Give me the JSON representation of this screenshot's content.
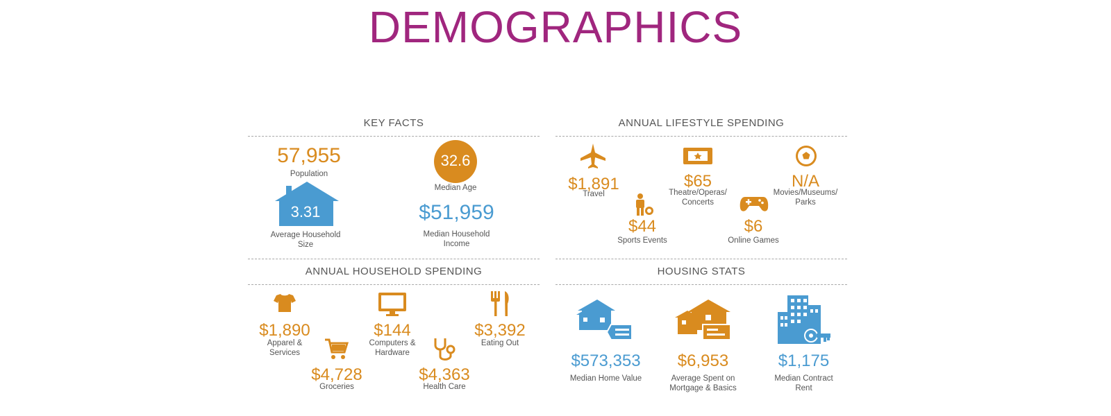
{
  "title": "DEMOGRAPHICS",
  "colors": {
    "title": "#a0267e",
    "orange": "#d98b1f",
    "blue": "#4a9bd1",
    "label": "#555555"
  },
  "key_facts": {
    "heading": "KEY FACTS",
    "population": {
      "value": "57,955",
      "label": "Population"
    },
    "median_age": {
      "value": "32.6",
      "label": "Median Age"
    },
    "household_size": {
      "value": "3.31",
      "label": "Average Household Size"
    },
    "household_income": {
      "value": "$51,959",
      "label": "Median Household Income"
    }
  },
  "lifestyle": {
    "heading": "ANNUAL LIFESTYLE SPENDING",
    "travel": {
      "value": "$1,891",
      "label": "Travel",
      "icon": "airplane-icon"
    },
    "theatre": {
      "value": "$65",
      "label": "Theatre/Operas/ Concerts",
      "icon": "ticket-icon"
    },
    "movies": {
      "value": "N/A",
      "label": "Movies/Museums/ Parks",
      "icon": "soccer-ball-icon"
    },
    "sports": {
      "value": "$44",
      "label": "Sports Events",
      "icon": "player-icon"
    },
    "games": {
      "value": "$6",
      "label": "Online Games",
      "icon": "gamepad-icon"
    }
  },
  "household_spending": {
    "heading": "ANNUAL HOUSEHOLD SPENDING",
    "apparel": {
      "value": "$1,890",
      "label": "Apparel & Services",
      "icon": "shirt-icon"
    },
    "computers": {
      "value": "$144",
      "label": "Computers & Hardware",
      "icon": "monitor-icon"
    },
    "eating": {
      "value": "$3,392",
      "label": "Eating Out",
      "icon": "fork-knife-icon"
    },
    "groceries": {
      "value": "$4,728",
      "label": "Groceries",
      "icon": "cart-icon"
    },
    "health": {
      "value": "$4,363",
      "label": "Health Care",
      "icon": "stethoscope-icon"
    }
  },
  "housing": {
    "heading": "HOUSING STATS",
    "home_value": {
      "value": "$573,353",
      "label": "Median Home Value",
      "icon": "house-tag-icon"
    },
    "mortgage": {
      "value": "$6,953",
      "label": "Average Spent on Mortgage & Basics",
      "icon": "house-check-icon"
    },
    "rent": {
      "value": "$1,175",
      "label": "Median Contract Rent",
      "icon": "building-key-icon"
    }
  }
}
